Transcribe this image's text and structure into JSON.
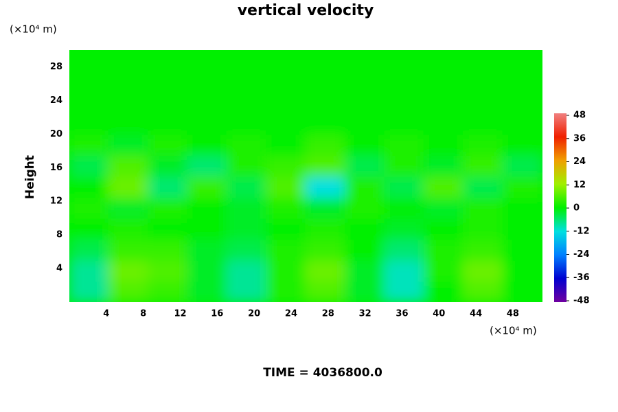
{
  "chart_data": {
    "type": "heatmap",
    "title": "vertical velocity",
    "y_label": "Height",
    "y_unit": "(×10⁴ m)",
    "x_unit": "(×10⁴ m)",
    "annotation": "TIME = 4036800.0",
    "x": [
      2.13,
      6.4,
      10.67,
      14.93,
      19.2,
      23.47,
      27.73,
      32.0,
      36.27,
      40.53,
      44.8,
      49.07
    ],
    "y": [
      1.25,
      3.75,
      6.25,
      8.75,
      11.25,
      13.75,
      16.25,
      18.75,
      21.25,
      23.75,
      26.25,
      28.75
    ],
    "z": [
      [
        -8,
        6,
        4,
        -2,
        -8,
        2,
        6,
        -2,
        -10,
        0,
        6,
        0
      ],
      [
        -8,
        8,
        6,
        -2,
        -8,
        2,
        8,
        -2,
        -10,
        2,
        8,
        0
      ],
      [
        -4,
        4,
        4,
        -2,
        -4,
        2,
        4,
        0,
        -6,
        2,
        4,
        0
      ],
      [
        0,
        2,
        0,
        0,
        -2,
        0,
        2,
        0,
        -2,
        0,
        2,
        0
      ],
      [
        2,
        -2,
        2,
        0,
        -2,
        2,
        -2,
        2,
        0,
        -2,
        2,
        0
      ],
      [
        0,
        8,
        -6,
        4,
        -4,
        6,
        -12,
        2,
        -4,
        6,
        -4,
        2
      ],
      [
        -4,
        6,
        -2,
        -6,
        2,
        4,
        6,
        -4,
        2,
        -2,
        4,
        -4
      ],
      [
        2,
        -2,
        2,
        0,
        2,
        0,
        4,
        0,
        2,
        0,
        2,
        0
      ],
      [
        0,
        0,
        0,
        0,
        0,
        0,
        0,
        0,
        0,
        0,
        0,
        0
      ],
      [
        0,
        0,
        0,
        0,
        0,
        0,
        0,
        0,
        0,
        0,
        0,
        0
      ],
      [
        0,
        0,
        0,
        0,
        0,
        0,
        0,
        0,
        0,
        0,
        0,
        0
      ],
      [
        0,
        0,
        0,
        0,
        0,
        0,
        0,
        0,
        0,
        0,
        0,
        0
      ]
    ],
    "xlim": [
      0,
      51.2
    ],
    "xticks": [
      4,
      8,
      12,
      16,
      20,
      24,
      28,
      32,
      36,
      40,
      44,
      48
    ],
    "ylim": [
      0,
      30
    ],
    "yticks": [
      4,
      8,
      12,
      16,
      20,
      24,
      28
    ],
    "clim": [
      -48,
      48
    ],
    "cticks": [
      -48,
      -36,
      -24,
      -12,
      0,
      12,
      24,
      36,
      48
    ],
    "colormap": [
      "#7000a0",
      "#0000d0",
      "#0080ff",
      "#00e0e0",
      "#00f000",
      "#a0f000",
      "#f0a000",
      "#f02000",
      "#f08080"
    ]
  }
}
